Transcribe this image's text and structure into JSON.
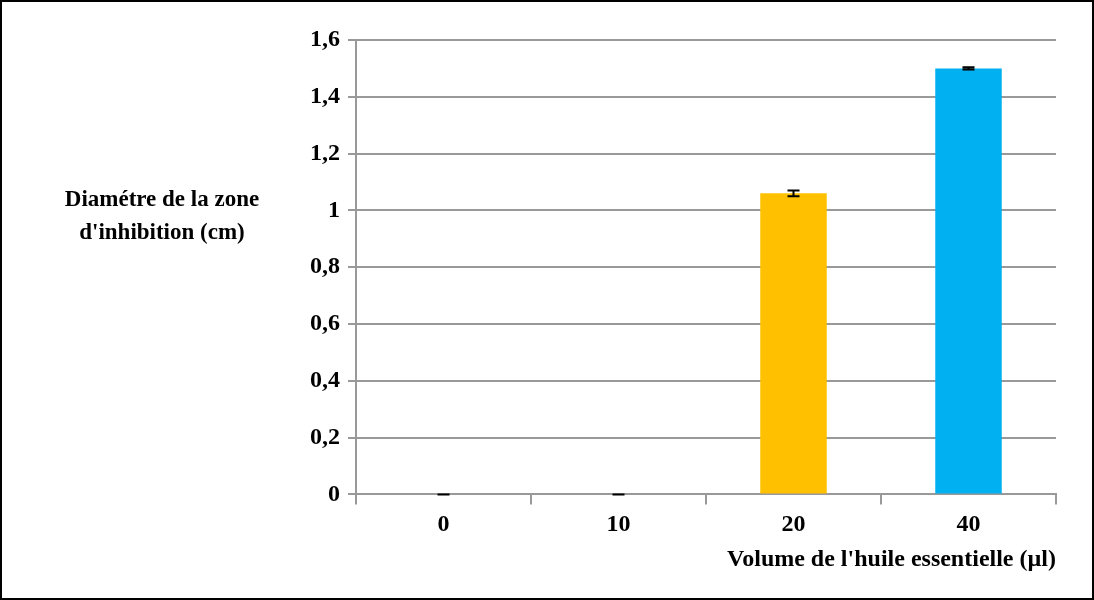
{
  "chart_data": {
    "type": "bar",
    "xlabel": "Volume de l'huile essentielle (µl)",
    "ylabel": "Diamétre de la zone d'inhibition (cm)",
    "categories": [
      "0",
      "10",
      "20",
      "40"
    ],
    "values": [
      0,
      0,
      1.06,
      1.5
    ],
    "colors": [
      "#ffc000",
      "#ffc000",
      "#ffc000",
      "#00b0f0"
    ],
    "errors": [
      0,
      0,
      0.01,
      0.004
    ],
    "ylim": [
      0,
      1.6
    ],
    "yticks": [
      {
        "value": 0,
        "label": "0"
      },
      {
        "value": 0.2,
        "label": "0,2"
      },
      {
        "value": 0.4,
        "label": "0,4"
      },
      {
        "value": 0.6,
        "label": "0,6"
      },
      {
        "value": 0.8,
        "label": "0,8"
      },
      {
        "value": 1,
        "label": "1"
      },
      {
        "value": 1.2,
        "label": "1,2"
      },
      {
        "value": 1.4,
        "label": "1,4"
      },
      {
        "value": 1.6,
        "label": "1,6"
      }
    ],
    "grid": "y",
    "legend": false
  }
}
